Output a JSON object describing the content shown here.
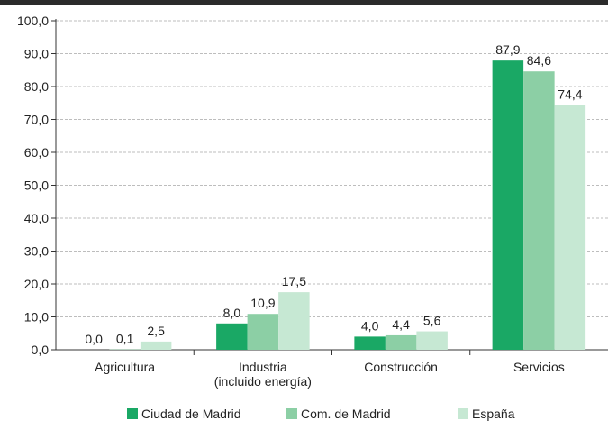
{
  "chart_data": {
    "type": "bar",
    "categories": [
      "Agricultura",
      "Industria\n(incluido energía)",
      "Construcción",
      "Servicios"
    ],
    "series": [
      {
        "name": "Ciudad de Madrid",
        "color": "#1aa865",
        "values": [
          0.0,
          8.0,
          4.0,
          87.9
        ],
        "labels": [
          "0,0",
          "8,0",
          "4,0",
          "87,9"
        ]
      },
      {
        "name": "Com. de Madrid",
        "color": "#8ccfa5",
        "values": [
          0.1,
          10.9,
          4.4,
          84.6
        ],
        "labels": [
          "0,1",
          "10,9",
          "4,4",
          "84,6"
        ]
      },
      {
        "name": "España",
        "color": "#c6e8d3",
        "values": [
          2.5,
          17.5,
          5.6,
          74.4
        ],
        "labels": [
          "2,5",
          "17,5",
          "5,6",
          "74,4"
        ]
      }
    ],
    "yticks": [
      "0,0",
      "10,0",
      "20,0",
      "30,0",
      "40,0",
      "50,0",
      "60,0",
      "70,0",
      "80,0",
      "90,0",
      "100,0"
    ],
    "ylim": [
      0,
      100
    ],
    "grid": true,
    "legend_position": "bottom",
    "title": "",
    "xlabel": "",
    "ylabel": ""
  }
}
